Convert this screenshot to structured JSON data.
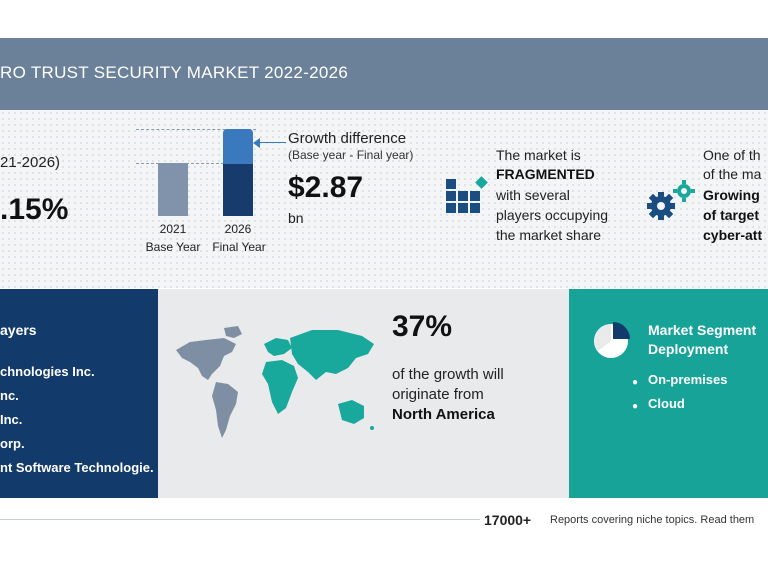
{
  "header": {
    "title": "RO TRUST SECURITY MARKET 2022-2026"
  },
  "cagr": {
    "period": "21-2026)",
    "value": ".15%"
  },
  "bars": {
    "label_2021": "2021",
    "sublabel_2021": "Base Year",
    "label_2026": "2026",
    "sublabel_2026": "Final Year"
  },
  "growth": {
    "title": "Growth difference",
    "subtitle": "(Base year - Final year)",
    "value": "$2.87",
    "unit": "bn"
  },
  "market": {
    "line1": "The market is",
    "line2": "FRAGMENTED",
    "line3": "with several",
    "line4": "players occupying",
    "line5": "the market share"
  },
  "driver": {
    "line1": "One of th",
    "line2": "of the ma",
    "line3": "Growing",
    "line4": "of target",
    "line5": "cyber-att"
  },
  "players": {
    "title": "ayers",
    "items": [
      "chnologies Inc.",
      "nc.",
      "Inc.",
      "orp.",
      "nt Software Technologie."
    ]
  },
  "geo": {
    "percent": "37%",
    "line1": "of the growth will",
    "line2": "originate from",
    "region": "North America"
  },
  "segment": {
    "title_line1": "Market Segment",
    "title_line2": "Deployment",
    "items": [
      "On-premises",
      "Cloud"
    ]
  },
  "footer": {
    "count": "17000+",
    "text": "Reports covering niche topics. Read them"
  },
  "colors": {
    "header": "#6b8099",
    "navy": "#123a6b",
    "teal": "#17a398",
    "bar_base": "#8093aa",
    "bar_final_top": "#3a79bd",
    "bar_final_bottom": "#173b6c"
  }
}
